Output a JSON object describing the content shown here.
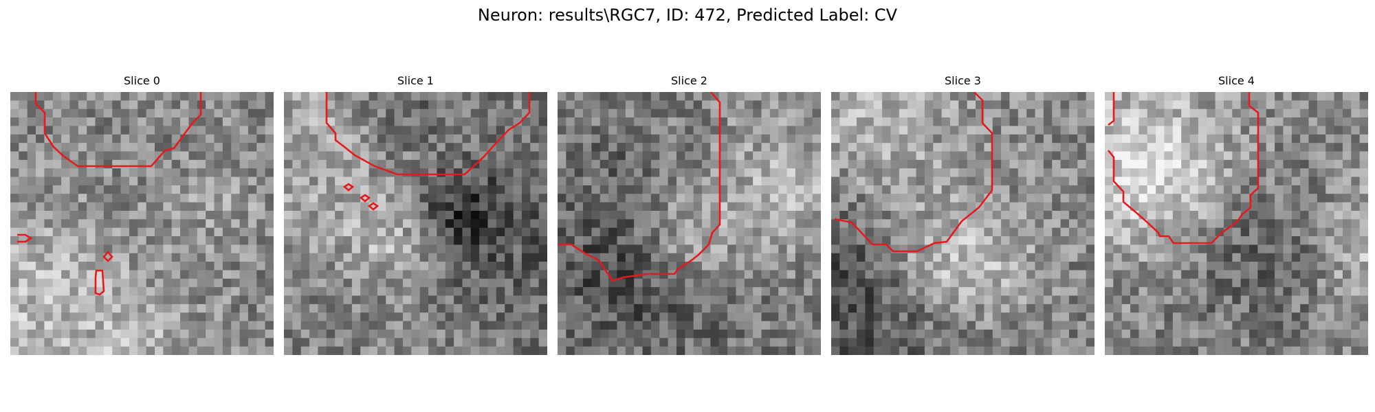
{
  "figure": {
    "title": "Neuron: results\\RGC7, ID: 472, Predicted Label: CV",
    "contour_color": "#e41a1c"
  },
  "panels": [
    {
      "label": "Slice 0",
      "seed": 11
    },
    {
      "label": "Slice 1",
      "seed": 23
    },
    {
      "label": "Slice 2",
      "seed": 37
    },
    {
      "label": "Slice 3",
      "seed": 51
    },
    {
      "label": "Slice 4",
      "seed": 67
    }
  ]
}
